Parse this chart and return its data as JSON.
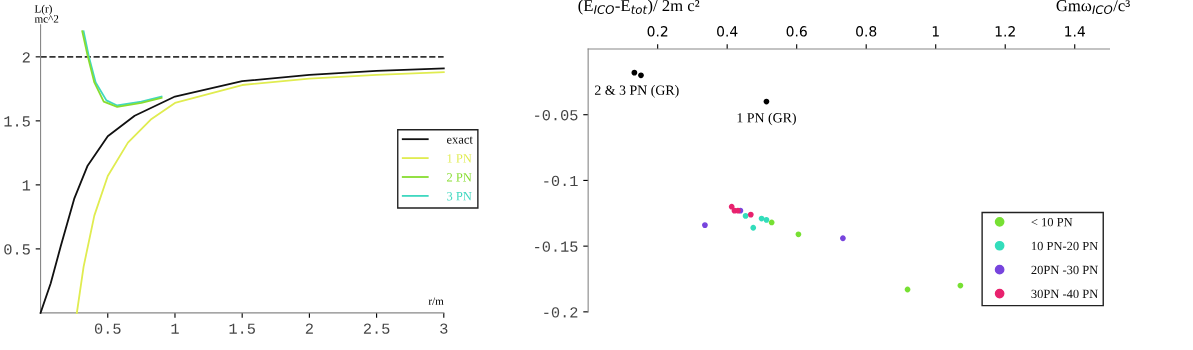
{
  "chart_data": [
    {
      "type": "line",
      "xlabel": "r/m",
      "ylabel": "L(r)\nmc^2",
      "xlim": [
        0,
        3
      ],
      "ylim": [
        0,
        2.25
      ],
      "xticks": [
        0.5,
        1,
        1.5,
        2,
        2.5,
        3
      ],
      "yticks": [
        0.5,
        1,
        1.5,
        2
      ],
      "grid": false,
      "legend": "right",
      "line_style": "solid",
      "marker": "none",
      "ref_lines": [
        {
          "axis": "y",
          "value": 2,
          "color": "#333333",
          "line_style": "dashed"
        }
      ],
      "series": [
        {
          "name": "exact",
          "color": "#111111",
          "x": [
            0,
            0.075,
            0.15,
            0.25,
            0.35,
            0.5,
            0.7,
            1.0,
            1.5,
            2.0,
            2.5,
            3.0
          ],
          "values": [
            0,
            0.23,
            0.52,
            0.89,
            1.15,
            1.38,
            1.54,
            1.69,
            1.81,
            1.86,
            1.89,
            1.91
          ]
        },
        {
          "name": "1 PN",
          "color": "#e0ec50",
          "x": [
            0.27,
            0.32,
            0.4,
            0.5,
            0.65,
            0.82,
            1.0,
            1.5,
            2.0,
            2.5,
            3.0
          ],
          "values": [
            0,
            0.36,
            0.76,
            1.07,
            1.33,
            1.51,
            1.64,
            1.78,
            1.83,
            1.86,
            1.88
          ]
        },
        {
          "name": "2 PN",
          "color": "#88dd30",
          "x": [
            0.31,
            0.35,
            0.4,
            0.47,
            0.57,
            0.75,
            0.9
          ],
          "values": [
            2.2,
            2.01,
            1.8,
            1.65,
            1.61,
            1.64,
            1.68
          ]
        },
        {
          "name": "3 PN",
          "color": "#40d8c0",
          "x": [
            0.32,
            0.36,
            0.41,
            0.49,
            0.57,
            0.75,
            0.9
          ],
          "values": [
            2.2,
            2.0,
            1.8,
            1.66,
            1.62,
            1.65,
            1.69
          ]
        }
      ]
    },
    {
      "type": "scatter",
      "xlabel": "Gmω$_{ICO}$/c³",
      "ylabel": "(E$_{ICO}$-E$_{tot}$)/ 2m c²",
      "xlim": [
        0,
        1.5
      ],
      "ylim": [
        -0.2,
        0
      ],
      "xticks": [
        0.2,
        0.4,
        0.6,
        0.8,
        1,
        1.2,
        1.4
      ],
      "yticks": [
        -0.05,
        -0.1,
        -0.15,
        -0.2
      ],
      "grid": false,
      "legend": "bottom right",
      "marker": "circle",
      "annotations": [
        {
          "text": "2 & 3 PN (GR)",
          "x": 0.14,
          "y": -0.019
        },
        {
          "text": "1 PN (GR)",
          "x": 0.513,
          "y": -0.04
        }
      ],
      "series": [
        {
          "color": "#000000",
          "x": [
            0.133,
            0.152,
            0.513
          ],
          "values": [
            -0.018,
            -0.02,
            -0.04
          ]
        },
        {
          "name": "< 10 PN",
          "color": "#77e033",
          "x": [
            0.919,
            1.071,
            0.605,
            0.528
          ],
          "values": [
            -0.183,
            -0.18,
            -0.141,
            -0.132
          ]
        },
        {
          "name": "10 PN-20 PN",
          "color": "#33ddbb",
          "x": [
            0.499,
            0.513,
            0.475,
            0.453
          ],
          "values": [
            -0.129,
            -0.13,
            -0.136,
            -0.127
          ]
        },
        {
          "name": "20PN -30 PN",
          "color": "#7744dd",
          "x": [
            0.733,
            0.336,
            0.438
          ],
          "values": [
            -0.144,
            -0.134,
            -0.123
          ]
        },
        {
          "name": "30PN -40 PN",
          "color": "#e8226e",
          "x": [
            0.413,
            0.421,
            0.431,
            0.468
          ],
          "values": [
            -0.12,
            -0.123,
            -0.123,
            -0.126
          ]
        }
      ]
    }
  ]
}
